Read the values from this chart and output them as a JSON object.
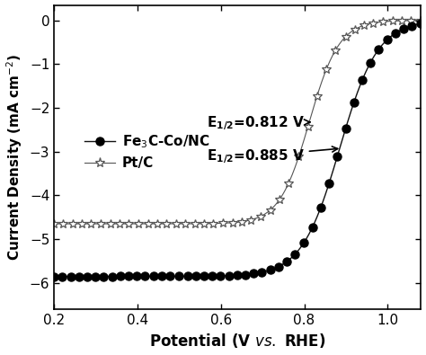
{
  "title": "",
  "xlabel": "Potential (V   vs. RHE)",
  "ylabel": "Current Density (mA cm$^{-2}$)",
  "xlim": [
    0.2,
    1.08
  ],
  "ylim": [
    -6.6,
    0.35
  ],
  "xticks": [
    0.2,
    0.4,
    0.6,
    0.8,
    1.0
  ],
  "yticks": [
    0,
    -1,
    -2,
    -3,
    -4,
    -5,
    -6
  ],
  "E_half_ptc": 0.812,
  "E_half_fe3c": 0.885,
  "ptc_ilim": -4.65,
  "fe3c_ilim": -5.85,
  "ptc_k": 28,
  "fe3c_k": 22,
  "ptc_color": "#555555",
  "fe3c_color": "#111111",
  "annotation_font": 11,
  "n_markers_fe3c": 45,
  "n_markers_ptc": 40
}
